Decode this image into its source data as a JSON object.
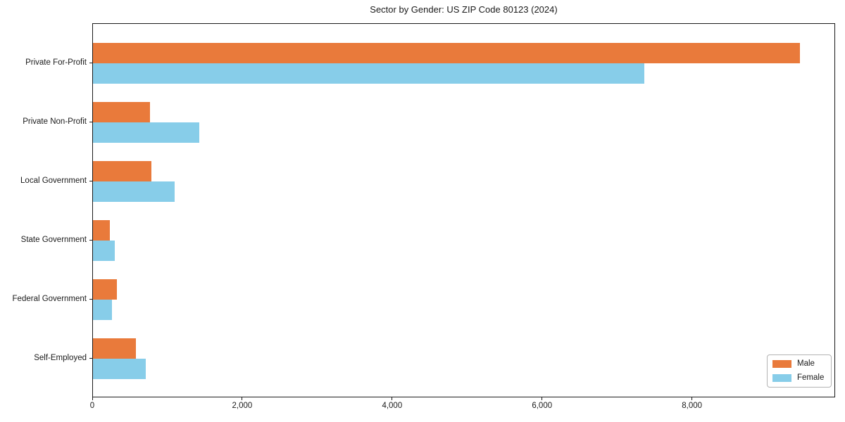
{
  "title": "Sector by Gender: US ZIP Code 80123 (2024)",
  "chart_data": {
    "type": "bar",
    "orientation": "horizontal",
    "title": "Sector by Gender: US ZIP Code 80123 (2024)",
    "categories": [
      "Private For-Profit",
      "Private Non-Profit",
      "Local Government",
      "State Government",
      "Federal Government",
      "Self-Employed"
    ],
    "series": [
      {
        "name": "Male",
        "color": "#e97a3b",
        "values": [
          9430,
          765,
          775,
          225,
          320,
          570
        ]
      },
      {
        "name": "Female",
        "color": "#87cde9",
        "values": [
          7350,
          1415,
          1085,
          290,
          250,
          700
        ]
      }
    ],
    "xlabel": "",
    "ylabel": "",
    "xlim": [
      0,
      9910
    ],
    "xticks": {
      "values": [
        0,
        2000,
        4000,
        6000,
        8000
      ],
      "labels": [
        "0",
        "2,000",
        "4,000",
        "6,000",
        "8,000"
      ]
    },
    "grid": false,
    "axes_box": true,
    "legend": {
      "position": "lower-right",
      "entries": [
        "Male",
        "Female"
      ]
    },
    "background_color": "#ffffff",
    "spine_color": "#1a1a1a"
  }
}
